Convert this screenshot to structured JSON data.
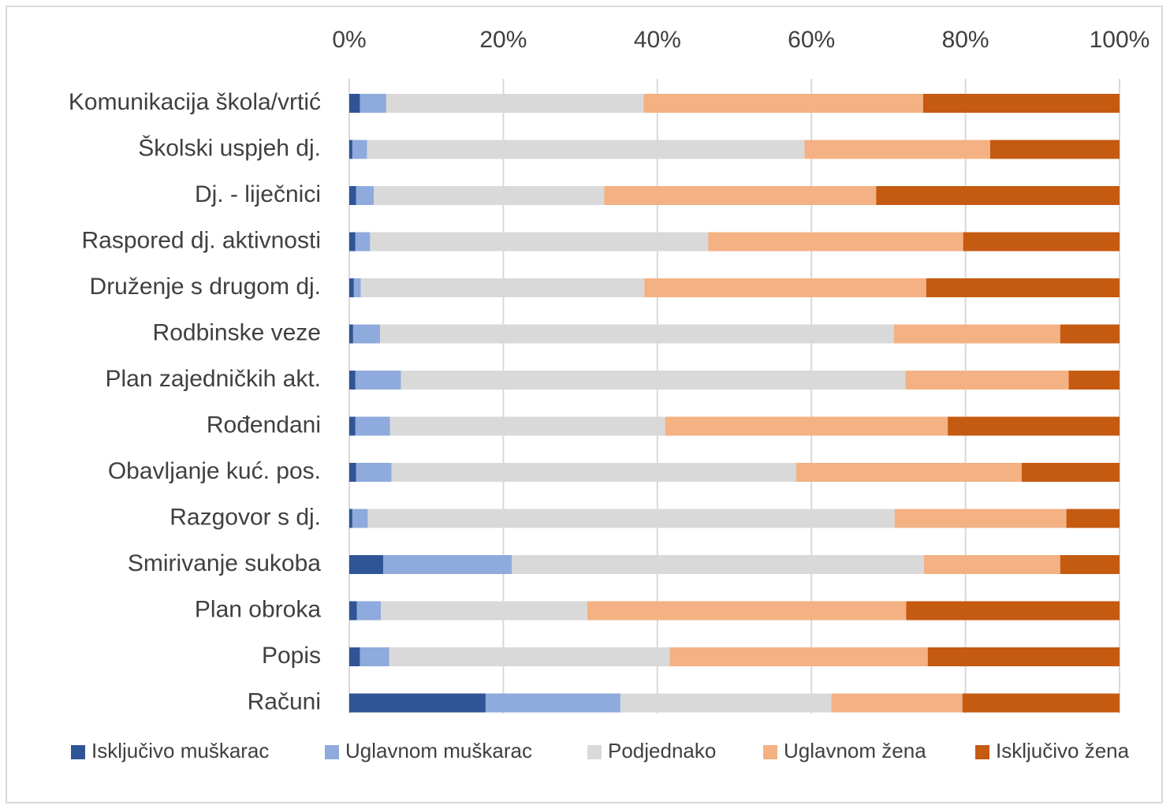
{
  "chart_data": {
    "type": "stacked_barh",
    "categories": [
      "Komunikacija škola/vrtić",
      "Školski uspjeh dj.",
      "Dj. - liječnici",
      "Raspored dj. aktivnosti",
      "Druženje s drugom dj.",
      "Rodbinske veze",
      "Plan zajedničkih akt.",
      "Rođendani",
      "Obavljanje kuć. pos.",
      "Razgovor s dj.",
      "Smirivanje sukoba",
      "Plan obroka",
      "Popis",
      "Računi"
    ],
    "series": [
      {
        "name": "Isključivo muškarac",
        "color": "#2f5597",
        "values": [
          1.4,
          0.4,
          0.9,
          0.8,
          0.6,
          0.5,
          0.8,
          0.8,
          0.9,
          0.4,
          4.4,
          1.0,
          1.4,
          17.7
        ]
      },
      {
        "name": "Uglavnom muškarac",
        "color": "#8faadc",
        "values": [
          3.4,
          1.9,
          2.3,
          1.9,
          0.9,
          3.5,
          5.9,
          4.5,
          4.6,
          2.0,
          16.7,
          3.1,
          3.8,
          17.5
        ]
      },
      {
        "name": "Podjednako",
        "color": "#d9d9d9",
        "values": [
          33.4,
          56.8,
          29.9,
          43.9,
          36.8,
          66.7,
          65.5,
          35.7,
          52.5,
          68.4,
          53.5,
          26.8,
          36.4,
          27.4
        ]
      },
      {
        "name": "Uglavnom žena",
        "color": "#f4b183",
        "values": [
          36.3,
          24.1,
          35.3,
          33.1,
          36.6,
          21.6,
          21.2,
          36.7,
          29.3,
          22.3,
          17.7,
          41.4,
          33.5,
          17.0
        ]
      },
      {
        "name": "Isključivo žena",
        "color": "#c55a11",
        "values": [
          25.5,
          16.8,
          31.6,
          20.3,
          25.1,
          7.7,
          6.6,
          22.3,
          12.7,
          6.9,
          7.7,
          27.7,
          24.9,
          20.4
        ]
      }
    ],
    "xlim": [
      0,
      100
    ],
    "xticks": [
      {
        "value": 0,
        "label": "0%"
      },
      {
        "value": 20,
        "label": "20%"
      },
      {
        "value": 40,
        "label": "40%"
      },
      {
        "value": 60,
        "label": "60%"
      },
      {
        "value": 80,
        "label": "80%"
      },
      {
        "value": 100,
        "label": "100%"
      }
    ],
    "grid": true,
    "legend": "bottom"
  }
}
